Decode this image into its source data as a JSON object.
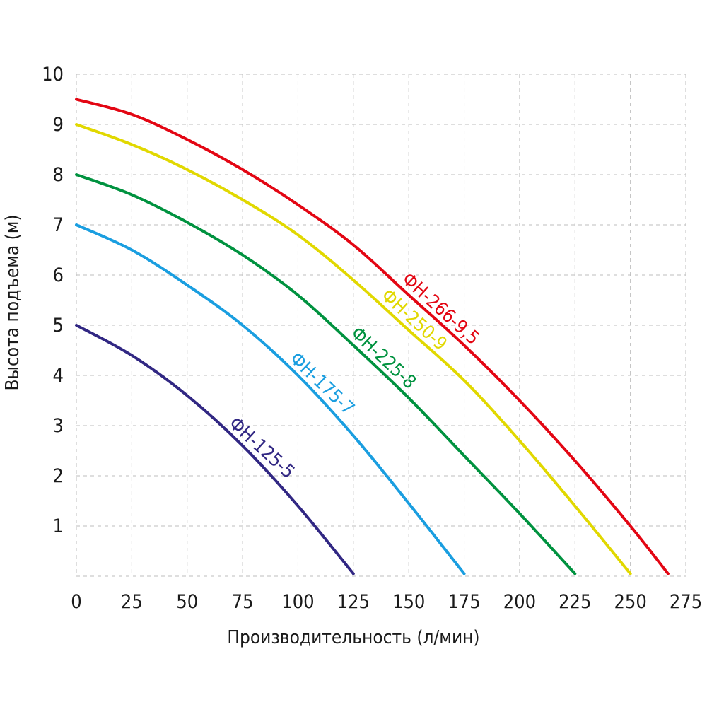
{
  "chart_data": {
    "type": "line",
    "title": "",
    "xlabel": "Производительность (л/мин)",
    "ylabel": "Высота подъема (м)",
    "xlim": [
      0,
      275
    ],
    "ylim": [
      0,
      10
    ],
    "grid": true,
    "x_ticks": [
      "0",
      "25",
      "50",
      "75",
      "100",
      "125",
      "150",
      "175",
      "200",
      "225",
      "250",
      "275"
    ],
    "y_ticks": [
      "1",
      "2",
      "3",
      "4",
      "5",
      "6",
      "7",
      "8",
      "9",
      "10"
    ],
    "series": [
      {
        "name": "ФН-266-9,5",
        "color": "#e30613",
        "x": [
          0,
          25,
          50,
          75,
          100,
          125,
          150,
          175,
          200,
          225,
          250,
          267
        ],
        "y": [
          9.5,
          9.2,
          8.7,
          8.1,
          7.4,
          6.6,
          5.6,
          4.6,
          3.5,
          2.3,
          1.0,
          0.05
        ]
      },
      {
        "name": "ФН-250-9",
        "color": "#e1d800",
        "x": [
          0,
          25,
          50,
          75,
          100,
          125,
          150,
          175,
          200,
          225,
          250
        ],
        "y": [
          9.0,
          8.6,
          8.1,
          7.5,
          6.8,
          5.9,
          4.9,
          3.9,
          2.7,
          1.4,
          0.05
        ]
      },
      {
        "name": "ФН-225-8",
        "color": "#00923f",
        "x": [
          0,
          25,
          50,
          75,
          100,
          125,
          150,
          175,
          200,
          225
        ],
        "y": [
          8.0,
          7.6,
          7.05,
          6.4,
          5.6,
          4.6,
          3.55,
          2.4,
          1.25,
          0.05
        ]
      },
      {
        "name": "ФН-175-7",
        "color": "#1a9ee0",
        "x": [
          0,
          25,
          50,
          75,
          100,
          125,
          150,
          175
        ],
        "y": [
          7.0,
          6.5,
          5.8,
          5.0,
          4.0,
          2.8,
          1.45,
          0.05
        ]
      },
      {
        "name": "ФН-125-5",
        "color": "#312783",
        "x": [
          0,
          25,
          50,
          75,
          100,
          125
        ],
        "y": [
          5.0,
          4.4,
          3.6,
          2.6,
          1.4,
          0.05
        ]
      }
    ]
  }
}
